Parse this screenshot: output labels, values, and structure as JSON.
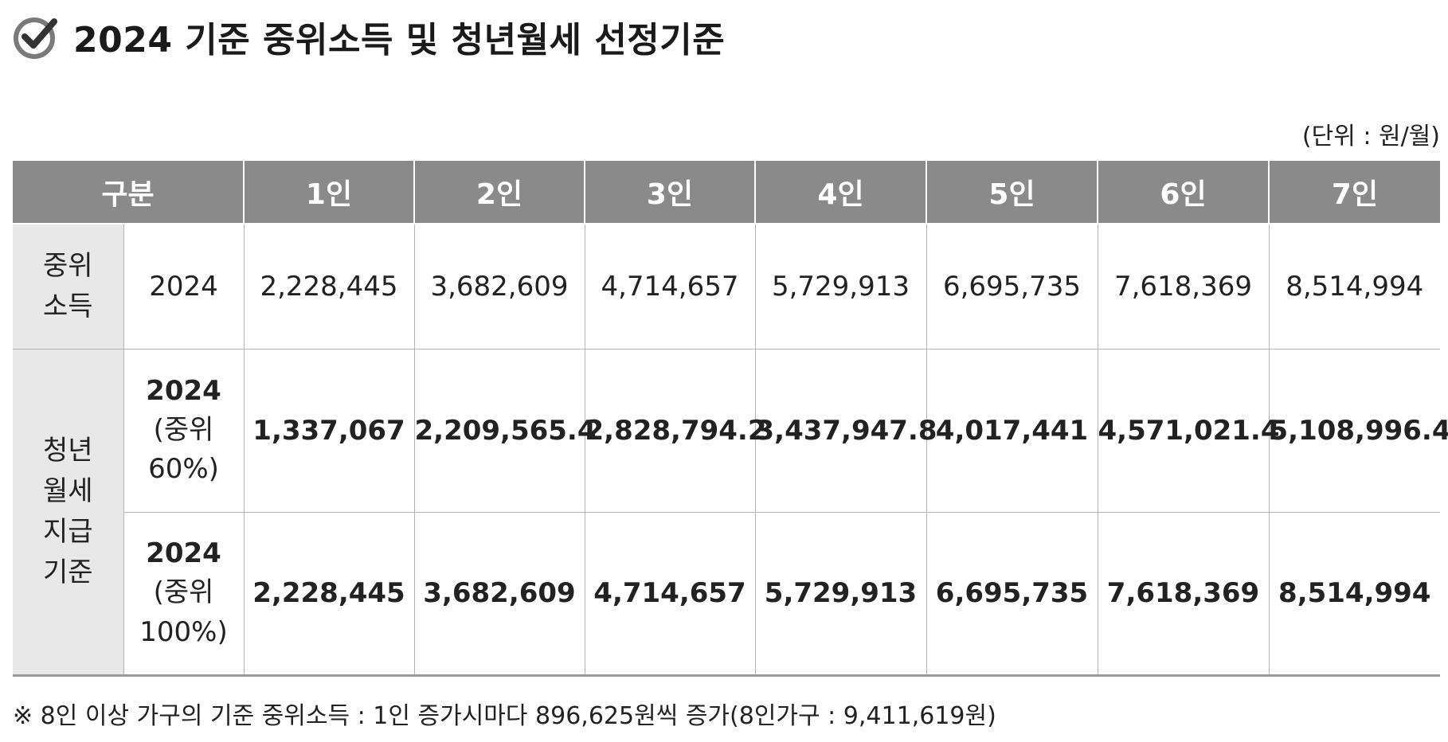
{
  "title": "2024 기준 중위소득 및 청년월세 선정기준",
  "icon": "check-circle-icon",
  "unit": "(단위 : 원/월)",
  "header": {
    "category": "구분",
    "columns": [
      "1인",
      "2인",
      "3인",
      "4인",
      "5인",
      "6인",
      "7인"
    ]
  },
  "median_income": {
    "group": "중위\n소득",
    "year": "2024",
    "values": [
      "2,228,445",
      "3,682,609",
      "4,714,657",
      "5,729,913",
      "6,695,735",
      "7,618,369",
      "8,514,994"
    ]
  },
  "youth_rent": {
    "group": "청년\n월세\n지급\n기준",
    "rows": [
      {
        "year": "2024",
        "pct": "(중위\n60%)",
        "values": [
          "1,337,067",
          "2,209,565.4",
          "2,828,794.2",
          "3,437,947.8",
          "4,017,441",
          "4,571,021.4",
          "5,108,996.4"
        ]
      },
      {
        "year": "2024",
        "pct": "(중위\n100%)",
        "values": [
          "2,228,445",
          "3,682,609",
          "4,714,657",
          "5,729,913",
          "6,695,735",
          "7,618,369",
          "8,514,994"
        ]
      }
    ]
  },
  "footnote": "※ 8인 이상 가구의 기준 중위소득 : 1인 증가시마다 896,625원씩 증가(8인가구 : 9,411,619원)",
  "colors": {
    "header_bg": "#8a8a8a",
    "shade_bg": "#e8e8e8",
    "border": "#b5b5b5"
  }
}
